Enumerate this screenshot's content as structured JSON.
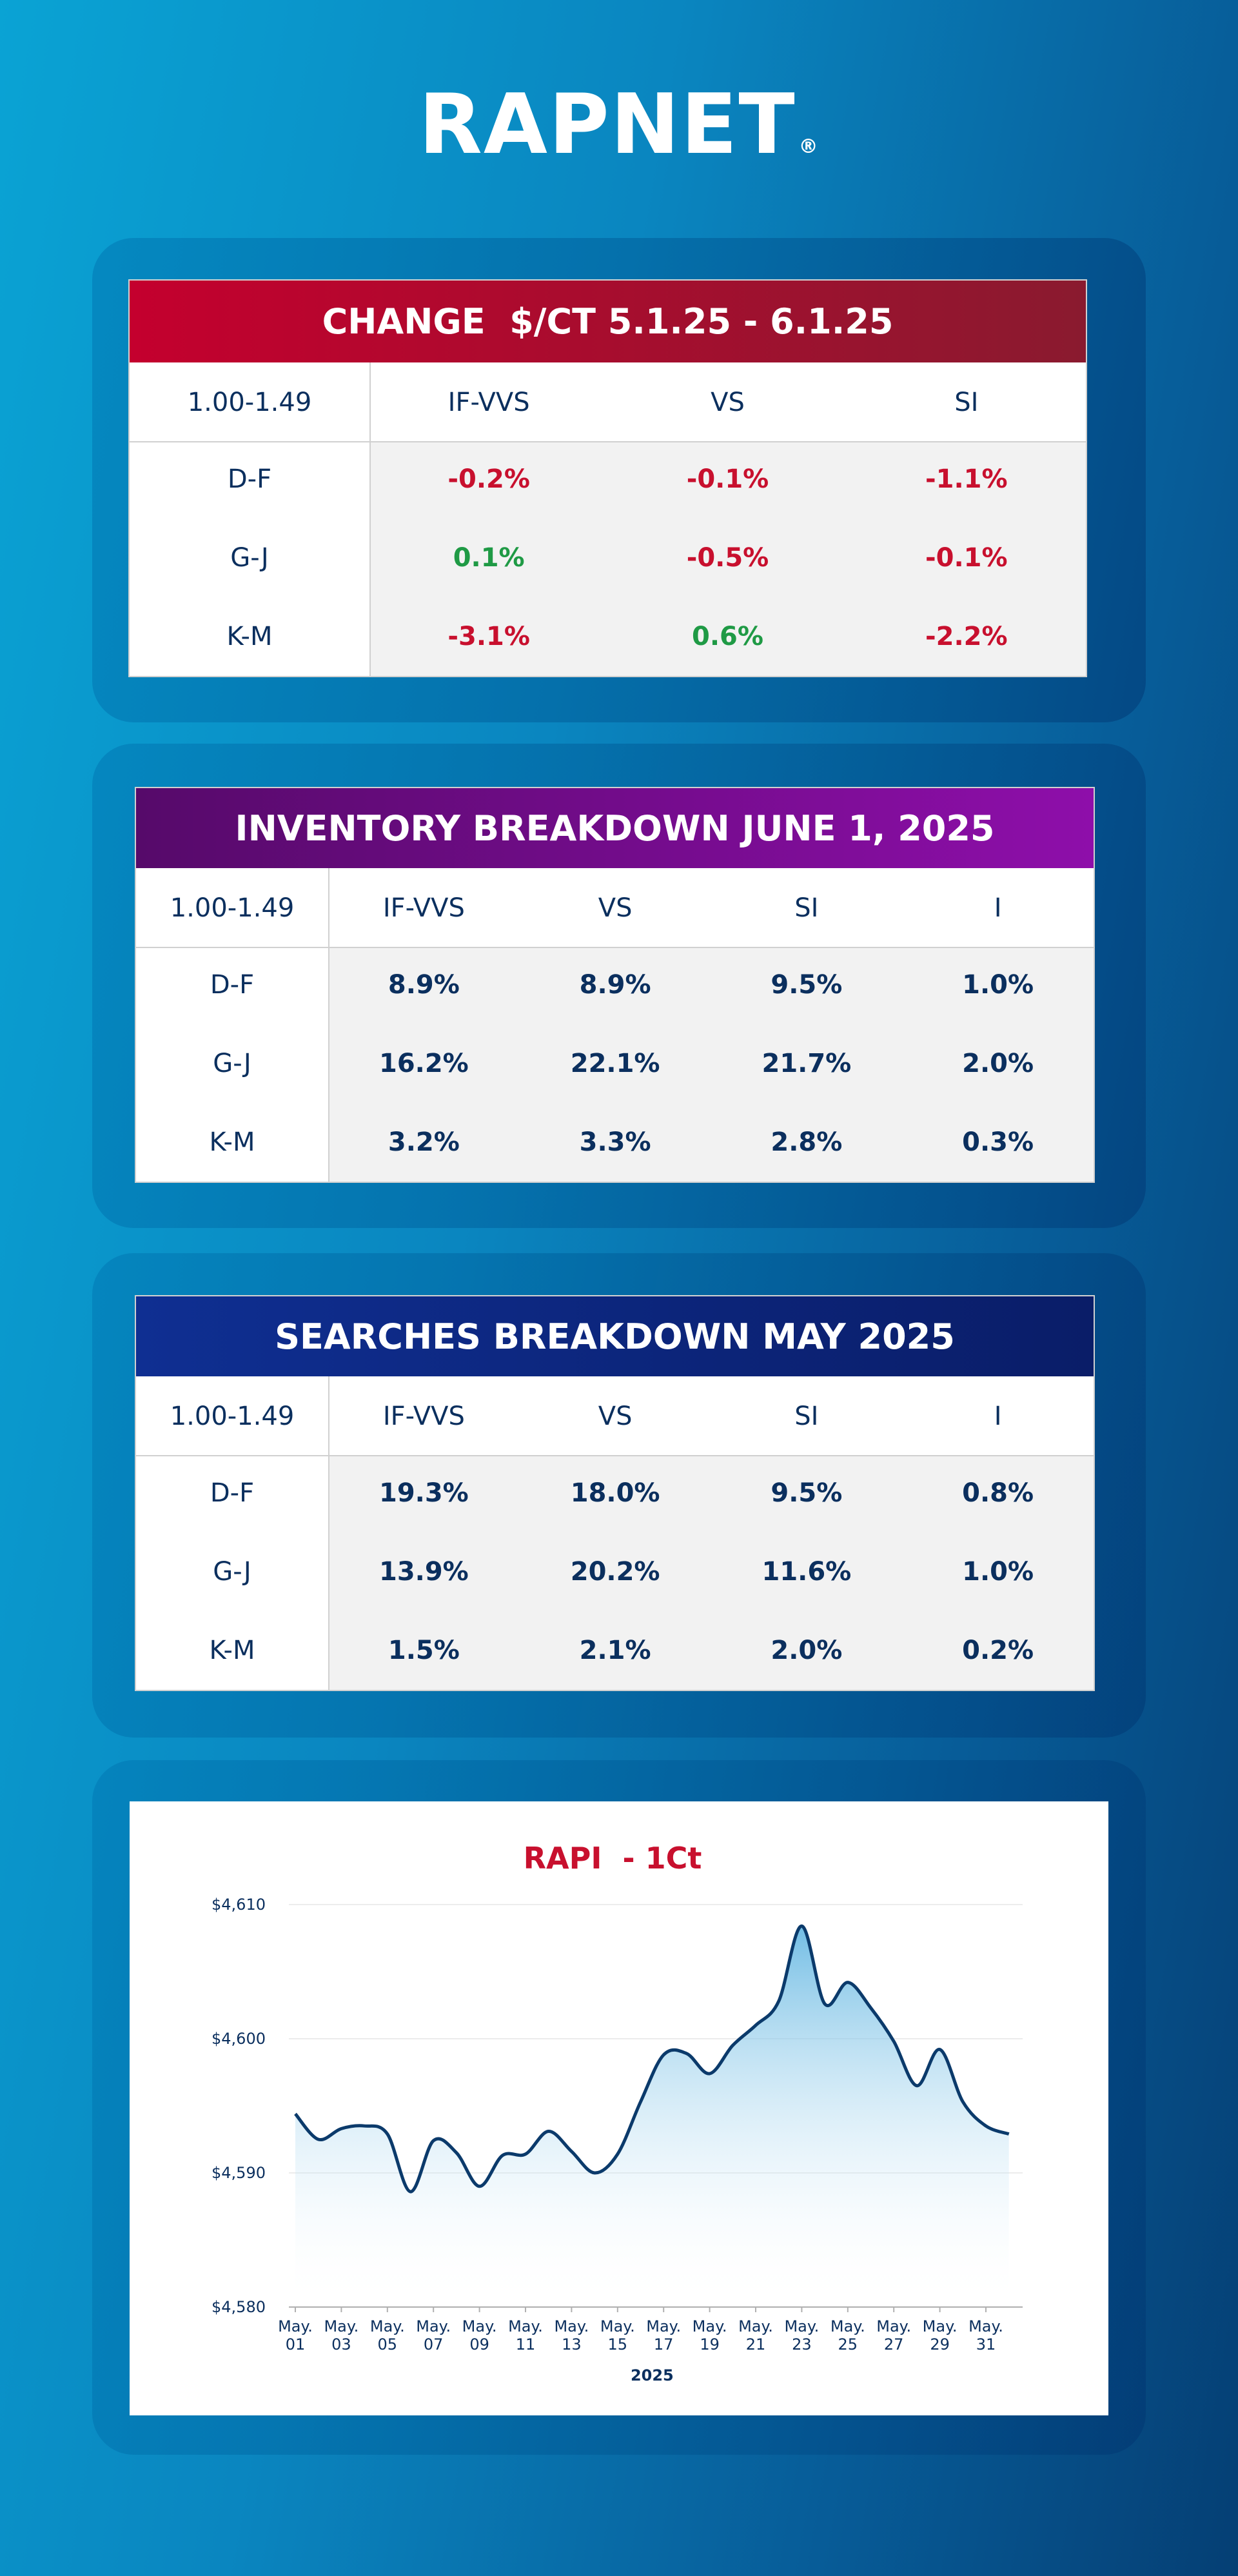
{
  "header": {
    "logo": "RAPNET",
    "mark": "®"
  },
  "tables": [
    {
      "title": "CHANGE  $/CT 5.1.25 - 6.1.25",
      "header_colors": [
        "#c4002e",
        "#8a1a2f"
      ],
      "columns": [
        "1.00-1.49",
        "IF-VVS",
        "VS",
        "SI"
      ],
      "rows": [
        [
          "D-F",
          "-0.2%",
          "-0.1%",
          "-1.1%"
        ],
        [
          "G-J",
          "0.1%",
          "-0.5%",
          "-0.1%"
        ],
        [
          "K-M",
          "-3.1%",
          "0.6%",
          "-2.2%"
        ]
      ],
      "negative_color": "#c8102e",
      "positive_color": "#1f9a45"
    },
    {
      "title": "INVENTORY BREAKDOWN JUNE 1, 2025",
      "header_colors": [
        "#560a6a",
        "#8e0eaa"
      ],
      "columns": [
        "1.00-1.49",
        "IF-VVS",
        "VS",
        "SI",
        "I"
      ],
      "rows": [
        [
          "D-F",
          "8.9%",
          "8.9%",
          "9.5%",
          "1.0%"
        ],
        [
          "G-J",
          "16.2%",
          "22.1%",
          "21.7%",
          "2.0%"
        ],
        [
          "K-M",
          "3.2%",
          "3.3%",
          "2.8%",
          "0.3%"
        ]
      ],
      "value_color": "#0b2f5e"
    },
    {
      "title": "SEARCHES BREAKDOWN MAY 2025",
      "header_colors": [
        "#0f2f92",
        "#0a1d68"
      ],
      "columns": [
        "1.00-1.49",
        "IF-VVS",
        "VS",
        "SI",
        "I"
      ],
      "rows": [
        [
          "D-F",
          "19.3%",
          "18.0%",
          "9.5%",
          "0.8%"
        ],
        [
          "G-J",
          "13.9%",
          "20.2%",
          "11.6%",
          "1.0%"
        ],
        [
          "K-M",
          "1.5%",
          "2.1%",
          "2.0%",
          "0.2%"
        ]
      ],
      "value_color": "#0b2f5e"
    }
  ],
  "chart_data": {
    "type": "line",
    "title": "RAPI  - 1Ct",
    "title_color": "#c8102e",
    "x_label": "2025",
    "categories": [
      "May.\n01",
      null,
      "May.\n03",
      null,
      "May.\n05",
      null,
      "May.\n07",
      null,
      "May.\n09",
      null,
      "May.\n11",
      null,
      "May.\n13",
      null,
      "May.\n15",
      null,
      "May.\n17",
      null,
      "May.\n19",
      null,
      "May.\n21",
      null,
      "May.\n23",
      null,
      "May.\n25",
      null,
      "May.\n27",
      null,
      "May.\n29",
      null,
      "May.\n31",
      null
    ],
    "values": [
      4594.4,
      4592.5,
      4593.3,
      4593.5,
      4592.9,
      4588.6,
      4592.4,
      4591.5,
      4589.0,
      4591.3,
      4591.4,
      4593.1,
      4591.6,
      4590.0,
      4591.4,
      4595.3,
      4598.8,
      4598.9,
      4597.4,
      4599.5,
      4601.0,
      4602.8,
      4608.4,
      4602.6,
      4604.2,
      4602.3,
      4599.8,
      4596.5,
      4599.2,
      4595.3,
      4593.5,
      4592.9
    ],
    "color": "#0b3a6b",
    "fill": true,
    "fill_color": "#5ab2e0",
    "ylim": [
      4580,
      4610
    ],
    "yticks": [
      {
        "value": 4580,
        "label": "$4,580"
      },
      {
        "value": 4590,
        "label": "$4,590"
      },
      {
        "value": 4600,
        "label": "$4,600"
      },
      {
        "value": 4610,
        "label": "$4,610"
      }
    ],
    "grid": true
  }
}
